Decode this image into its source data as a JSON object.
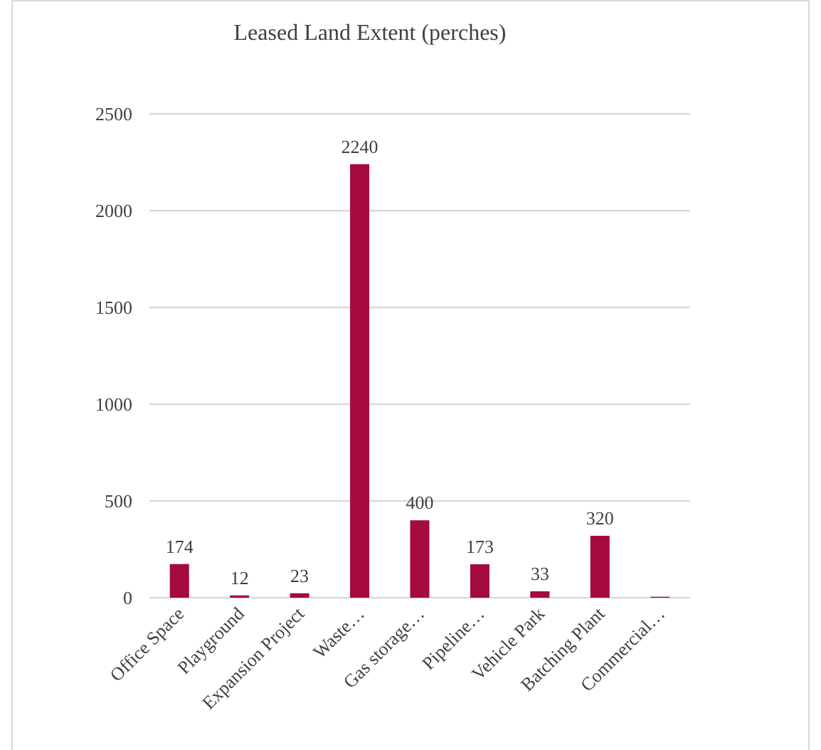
{
  "chart_data": {
    "type": "bar",
    "title": "Leased Land Extent (perches)",
    "categories": [
      "Office Space",
      "Playground",
      "Expansion Project",
      "Waste…",
      "Gas storage…",
      "Pipeline…",
      "Vehicle Park",
      "Batching Plant",
      "Commercial…"
    ],
    "values": [
      174,
      12,
      23,
      2240,
      400,
      173,
      33,
      320,
      5
    ],
    "value_labels": [
      "174",
      "12",
      "23",
      "2240",
      "400",
      "173",
      "33",
      "320",
      null
    ],
    "color": "#a50a3c",
    "ylim": [
      0,
      2500
    ],
    "yticks": [
      0,
      500,
      1000,
      1500,
      2000,
      2500
    ],
    "grid": "y"
  }
}
